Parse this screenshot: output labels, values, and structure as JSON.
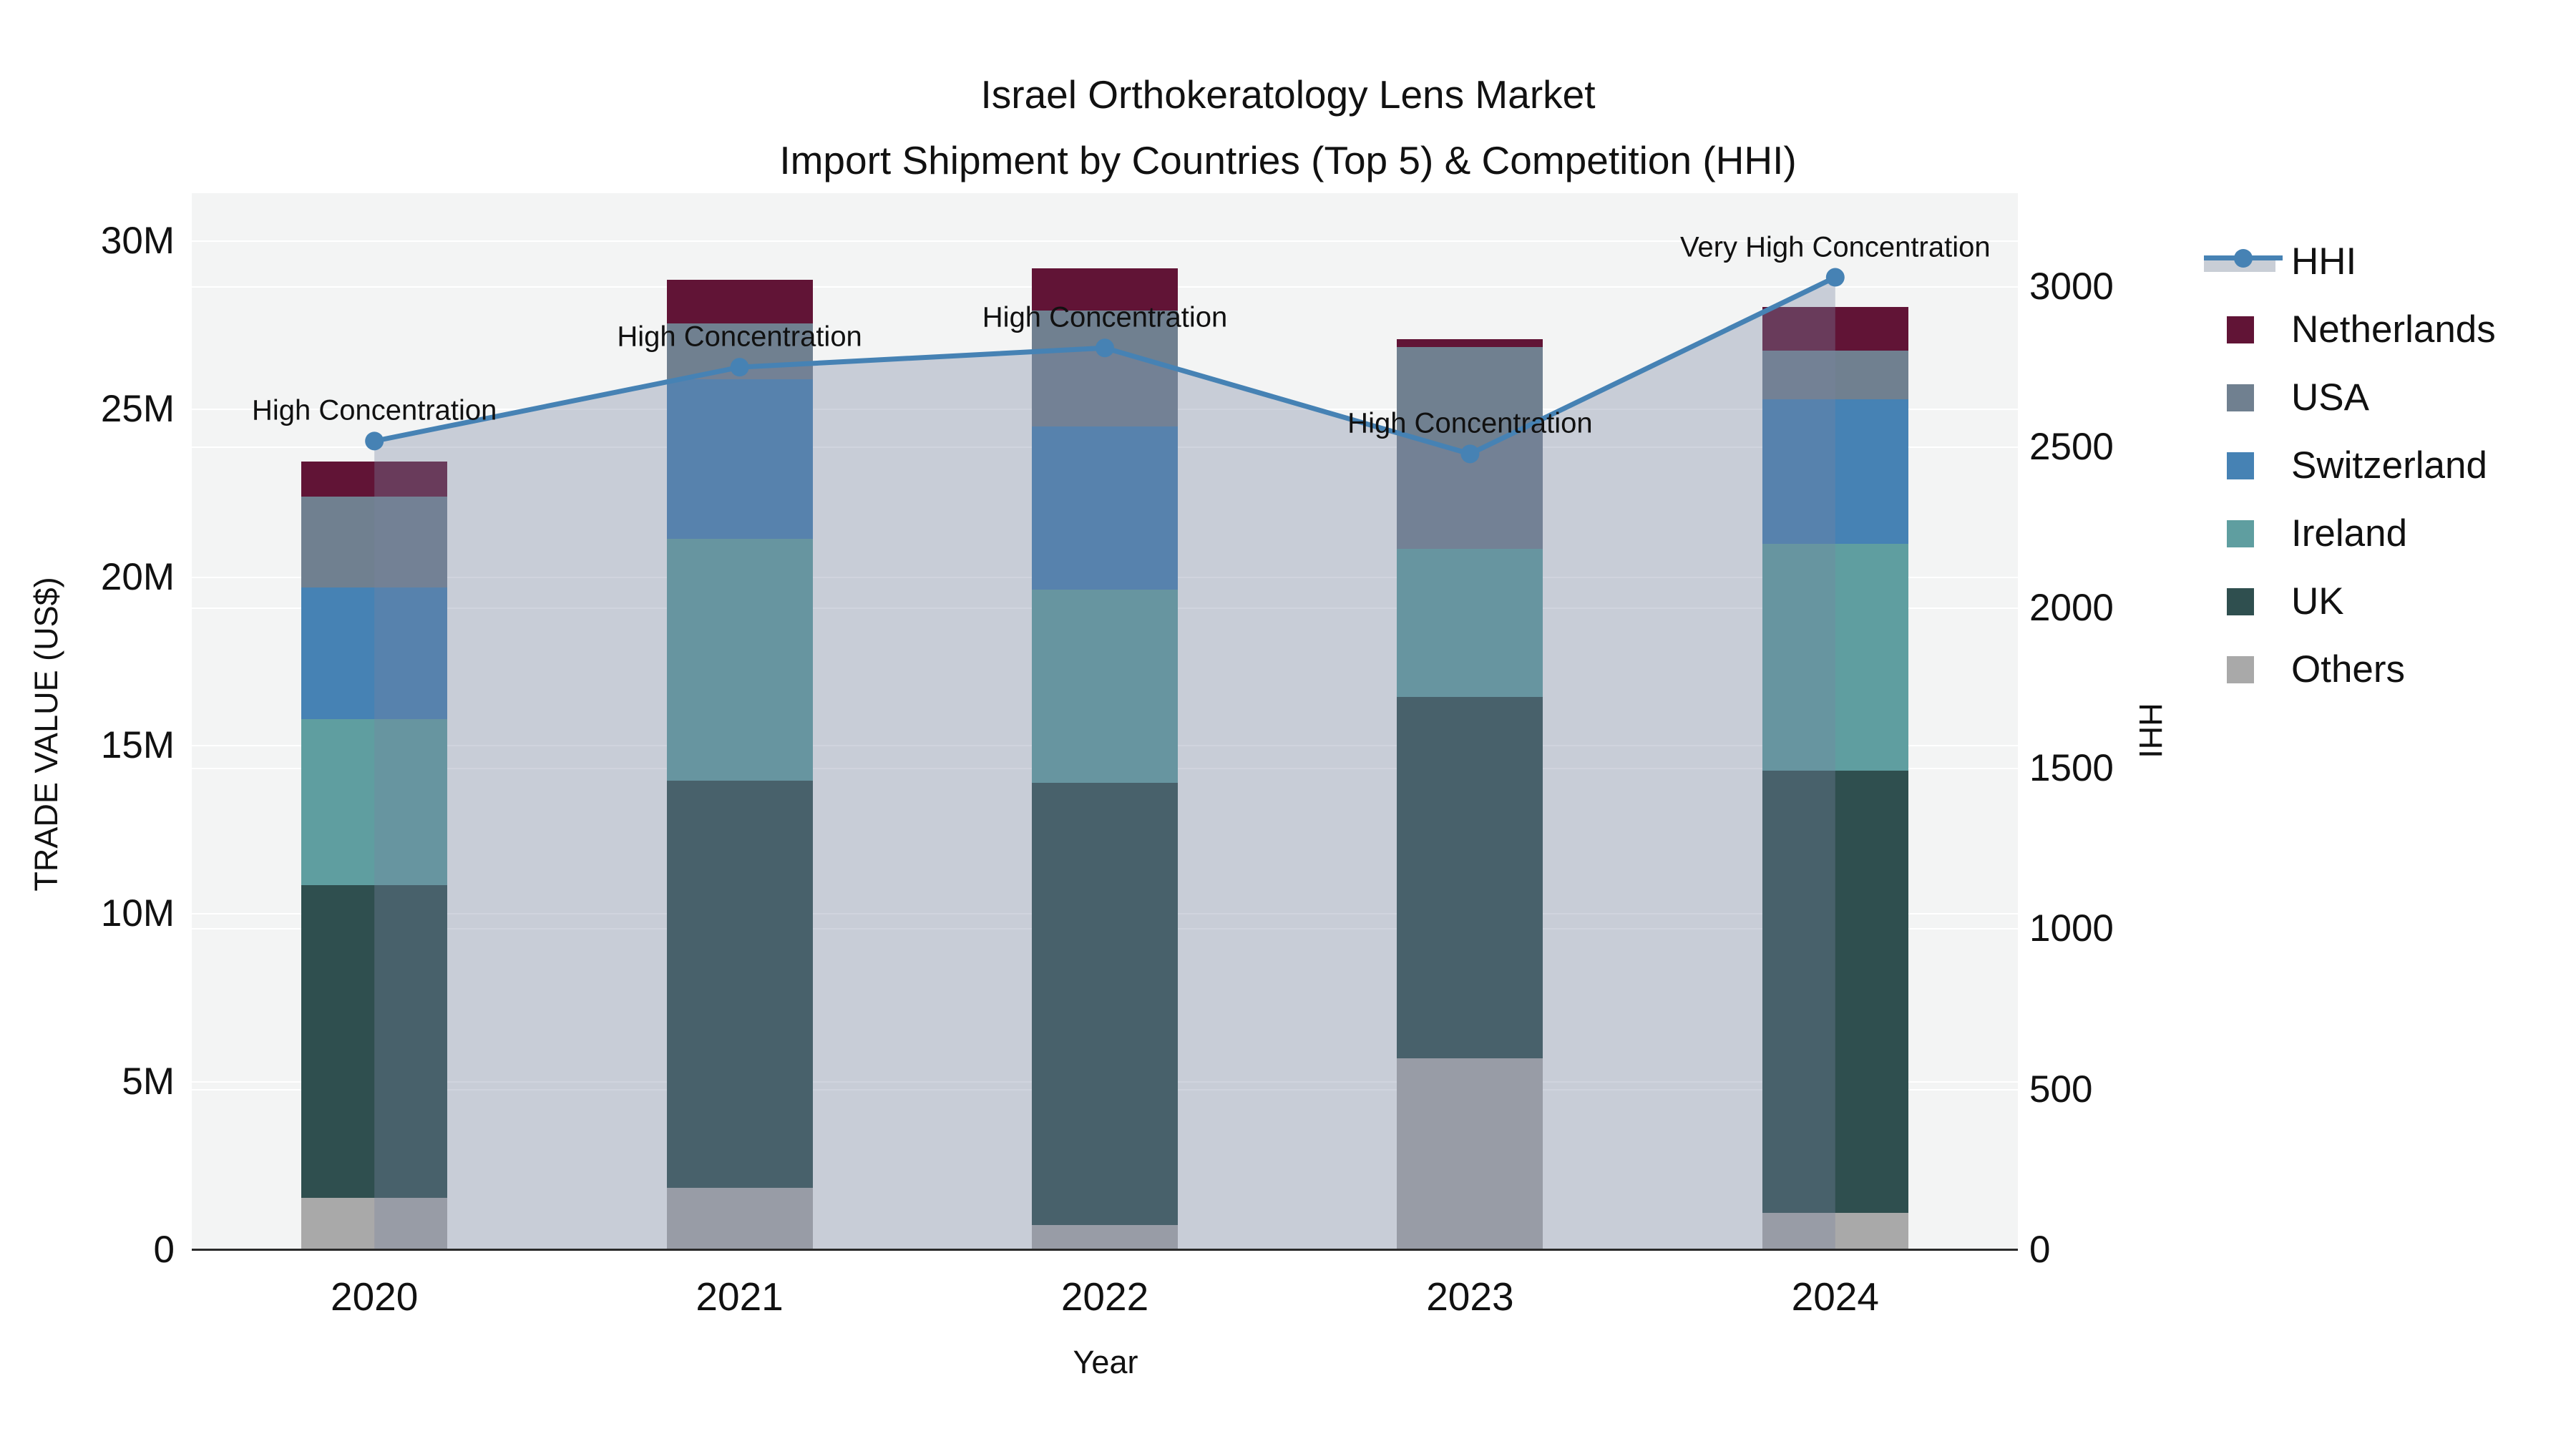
{
  "title": {
    "line1": "Israel Orthokeratology Lens Market",
    "line2": "Import Shipment by Countries (Top 5) & Competition (HHI)"
  },
  "axes": {
    "left": {
      "title": "TRADE VALUE (US$)",
      "ticks": [
        "0",
        "5M",
        "10M",
        "15M",
        "20M",
        "25M",
        "30M"
      ]
    },
    "right": {
      "title": "HHI",
      "ticks": [
        "0",
        "500",
        "1000",
        "1500",
        "2000",
        "2500",
        "3000"
      ]
    },
    "x": {
      "title": "Year"
    }
  },
  "legend": [
    {
      "type": "line-area",
      "label": "HHI",
      "color": "#4682b4",
      "area_color": "#c9ced6"
    },
    {
      "type": "swatch",
      "label": "Netherlands",
      "color": "#611436"
    },
    {
      "type": "swatch",
      "label": "USA",
      "color": "#708090"
    },
    {
      "type": "swatch",
      "label": "Switzerland",
      "color": "#4682b4"
    },
    {
      "type": "swatch",
      "label": "Ireland",
      "color": "#5f9ea0"
    },
    {
      "type": "swatch",
      "label": "UK",
      "color": "#2f4f4f"
    },
    {
      "type": "swatch",
      "label": "Others",
      "color": "#a9a9a9"
    }
  ],
  "chart_data": {
    "type": "bar+line",
    "categories": [
      "2020",
      "2021",
      "2022",
      "2023",
      "2024"
    ],
    "bar_units": "million US$",
    "series": [
      {
        "name": "Others",
        "color": "#a9a9a9",
        "values": [
          1.55,
          1.85,
          0.75,
          5.7,
          1.1
        ]
      },
      {
        "name": "UK",
        "color": "#2f4f4f",
        "values": [
          9.3,
          12.1,
          13.15,
          10.75,
          13.15
        ]
      },
      {
        "name": "Ireland",
        "color": "#5f9ea0",
        "values": [
          4.95,
          7.2,
          5.75,
          4.4,
          6.75
        ]
      },
      {
        "name": "Switzerland",
        "color": "#4682b4",
        "values": [
          3.9,
          4.75,
          4.85,
          0.0,
          4.3
        ]
      },
      {
        "name": "USA",
        "color": "#708090",
        "values": [
          2.7,
          1.65,
          3.45,
          6.0,
          1.45
        ]
      },
      {
        "name": "Netherlands",
        "color": "#611436",
        "values": [
          1.05,
          1.3,
          1.25,
          0.25,
          1.3
        ]
      }
    ],
    "bar_totals": [
      23.45,
      28.85,
      29.2,
      27.1,
      28.05
    ],
    "line": {
      "name": "HHI",
      "color": "#4682b4",
      "area_fill": "rgba(119,133,160,0.35)",
      "values": [
        2520,
        2750,
        2810,
        2480,
        3030
      ]
    },
    "annotations": [
      {
        "x": "2020",
        "text": "High Concentration"
      },
      {
        "x": "2021",
        "text": "High Concentration"
      },
      {
        "x": "2022",
        "text": "High Concentration"
      },
      {
        "x": "2023",
        "text": "High Concentration"
      },
      {
        "x": "2024",
        "text": "Very High Concentration"
      }
    ],
    "ylim_left_millions": [
      0,
      31.43
    ],
    "left_tick_step_millions": 5,
    "ylim_right": [
      0,
      3292
    ],
    "right_tick_step": 500,
    "grid": true,
    "legend_position": "right"
  }
}
